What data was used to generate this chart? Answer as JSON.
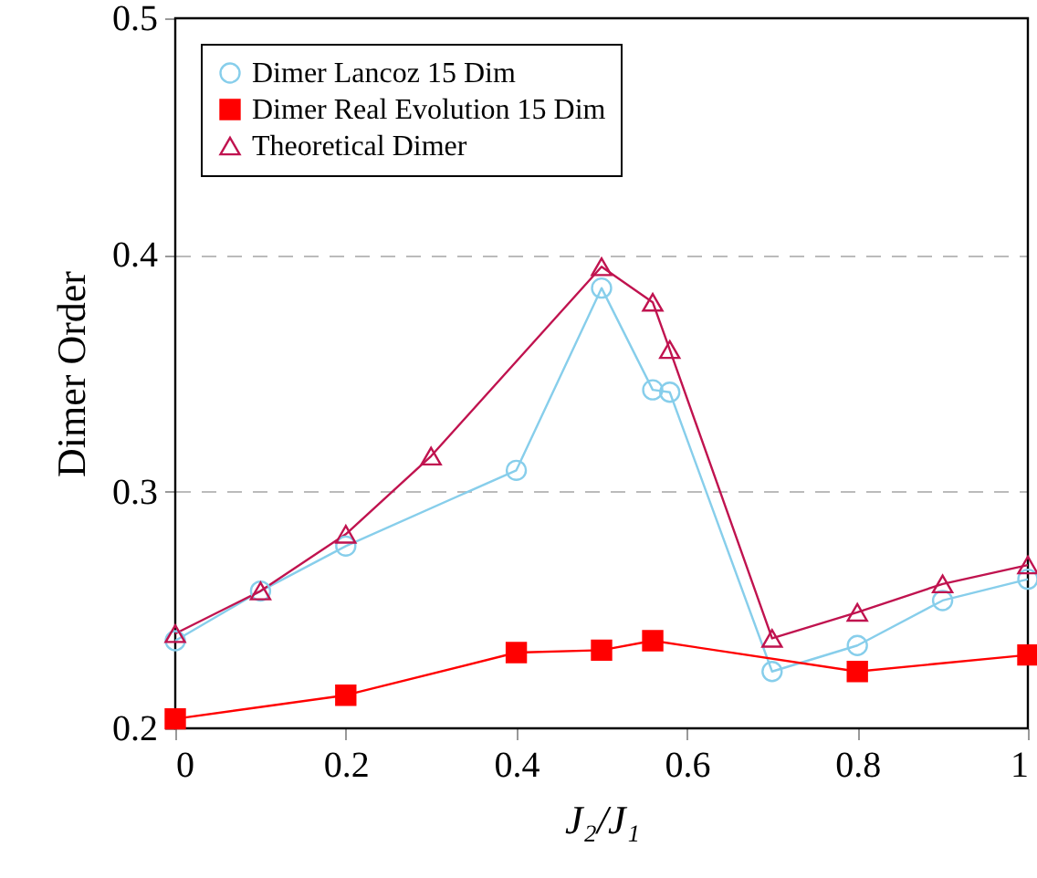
{
  "chart_data": {
    "type": "line",
    "xlabel": "J₂/J₁",
    "ylabel": "Dimer Order",
    "xlim": [
      0,
      1
    ],
    "xticks": [
      0,
      0.2,
      0.4,
      0.6,
      0.8,
      1
    ],
    "ylim": [
      0.2,
      0.5
    ],
    "yticks": [
      0.2,
      0.3,
      0.4,
      0.5
    ],
    "grid": "y",
    "legend": "top left",
    "series": [
      {
        "name": "Dimer Lancoz 15 Dim",
        "color": "#87ceeb",
        "marker": "circle",
        "x": [
          0,
          0.1,
          0.2,
          0.4,
          0.5,
          0.56,
          0.58,
          0.7,
          0.8,
          0.9,
          1.0
        ],
        "values": [
          0.237,
          0.258,
          0.277,
          0.309,
          0.386,
          0.343,
          0.342,
          0.224,
          0.235,
          0.254,
          0.263
        ]
      },
      {
        "name": "Dimer Real Evolution 15 Dim",
        "color": "#ff0000",
        "marker": "square",
        "x": [
          0,
          0.2,
          0.4,
          0.5,
          0.56,
          0.8,
          1.0
        ],
        "values": [
          0.204,
          0.214,
          0.232,
          0.233,
          0.237,
          0.224,
          0.231
        ]
      },
      {
        "name": "Theoretical Dimer",
        "color": "#c0134f",
        "marker": "triangle",
        "x": [
          0,
          0.1,
          0.2,
          0.3,
          0.5,
          0.56,
          0.58,
          0.7,
          0.8,
          0.9,
          1.0
        ],
        "values": [
          0.24,
          0.258,
          0.282,
          0.315,
          0.395,
          0.38,
          0.36,
          0.238,
          0.249,
          0.261,
          0.269
        ]
      }
    ]
  }
}
